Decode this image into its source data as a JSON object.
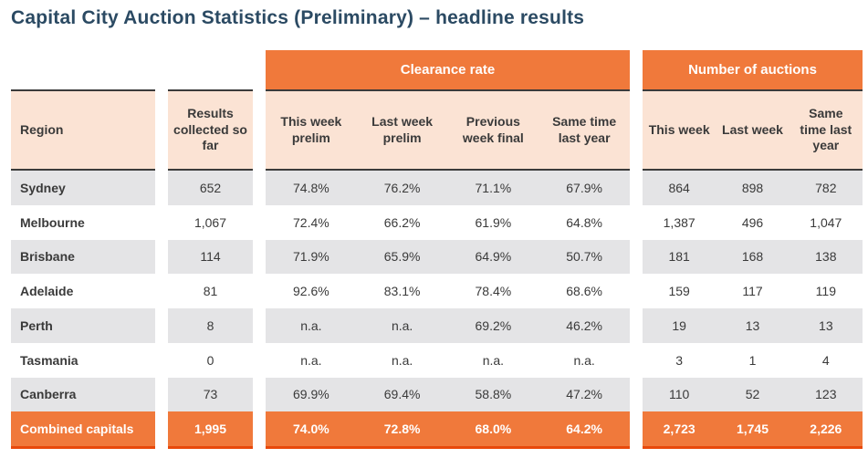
{
  "title": "Capital City Auction Statistics (Preliminary) – headline results",
  "colors": {
    "accent_orange": "#f0793b",
    "total_row_border": "#e8490b",
    "header_peach": "#fbe3d4",
    "row_stripe_gray": "#e4e4e6",
    "dark_rule": "#3b3b3b",
    "title_navy": "#2b4a63"
  },
  "table": {
    "groups": {
      "clearance": "Clearance rate",
      "auctions": "Number of auctions"
    },
    "headers": {
      "region": "Region",
      "results": "Results collected so far",
      "clearance": [
        "This week prelim",
        "Last week prelim",
        "Previous week final",
        "Same time last year"
      ],
      "auctions": [
        "This week",
        "Last week",
        "Same time last year"
      ]
    },
    "rows": [
      {
        "region": "Sydney",
        "results": "652",
        "clearance": [
          "74.8%",
          "76.2%",
          "71.1%",
          "67.9%"
        ],
        "auctions": [
          "864",
          "898",
          "782"
        ]
      },
      {
        "region": "Melbourne",
        "results": "1,067",
        "clearance": [
          "72.4%",
          "66.2%",
          "61.9%",
          "64.8%"
        ],
        "auctions": [
          "1,387",
          "496",
          "1,047"
        ]
      },
      {
        "region": "Brisbane",
        "results": "114",
        "clearance": [
          "71.9%",
          "65.9%",
          "64.9%",
          "50.7%"
        ],
        "auctions": [
          "181",
          "168",
          "138"
        ]
      },
      {
        "region": "Adelaide",
        "results": "81",
        "clearance": [
          "92.6%",
          "83.1%",
          "78.4%",
          "68.6%"
        ],
        "auctions": [
          "159",
          "117",
          "119"
        ]
      },
      {
        "region": "Perth",
        "results": "8",
        "clearance": [
          "n.a.",
          "n.a.",
          "69.2%",
          "46.2%"
        ],
        "auctions": [
          "19",
          "13",
          "13"
        ]
      },
      {
        "region": "Tasmania",
        "results": "0",
        "clearance": [
          "n.a.",
          "n.a.",
          "n.a.",
          "n.a."
        ],
        "auctions": [
          "3",
          "1",
          "4"
        ]
      },
      {
        "region": "Canberra",
        "results": "73",
        "clearance": [
          "69.9%",
          "69.4%",
          "58.8%",
          "47.2%"
        ],
        "auctions": [
          "110",
          "52",
          "123"
        ]
      }
    ],
    "total": {
      "region": "Combined capitals",
      "results": "1,995",
      "clearance": [
        "74.0%",
        "72.8%",
        "68.0%",
        "64.2%"
      ],
      "auctions": [
        "2,723",
        "1,745",
        "2,226"
      ]
    }
  }
}
